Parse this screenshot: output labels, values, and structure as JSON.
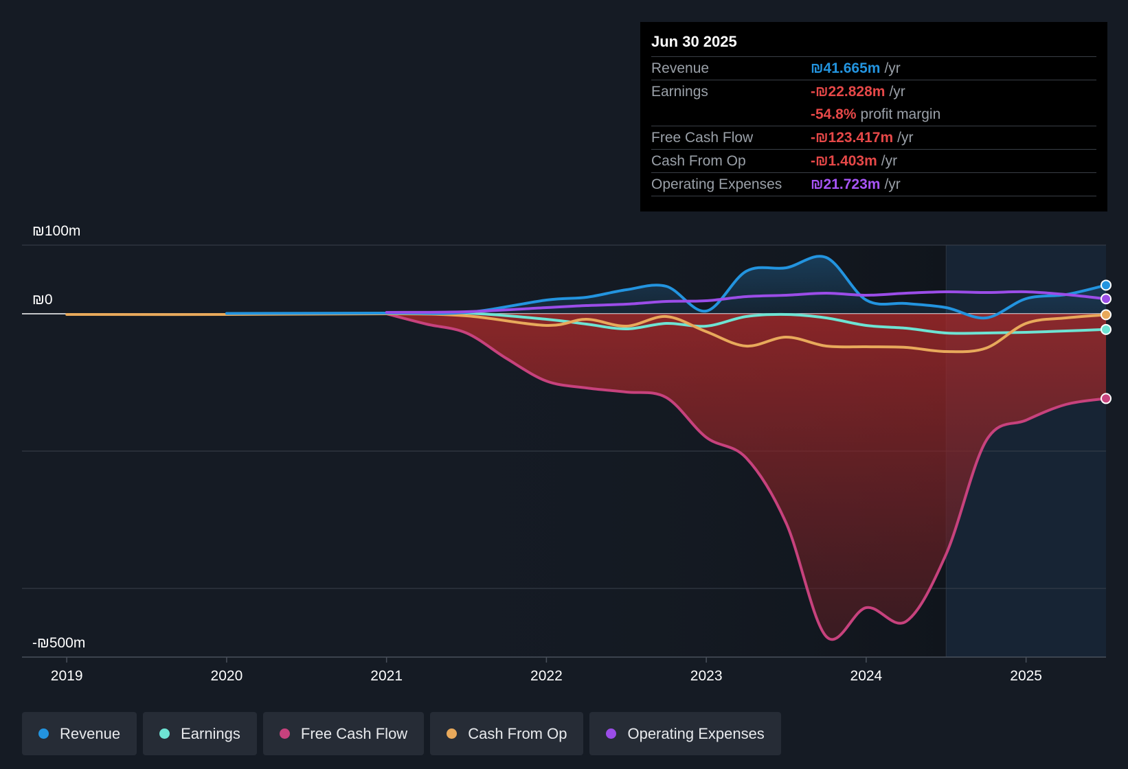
{
  "tooltip": {
    "date": "Jun 30 2025",
    "rows": [
      {
        "label": "Revenue",
        "value": "₪41.665m",
        "unit": "/yr",
        "color": "#2394df"
      },
      {
        "label": "Earnings",
        "value": "-₪22.828m",
        "unit": "/yr",
        "color": "#e64848"
      },
      {
        "label": "",
        "value": "-54.8%",
        "unit": "profit margin",
        "color": "#e64848"
      },
      {
        "label": "Free Cash Flow",
        "value": "-₪123.417m",
        "unit": "/yr",
        "color": "#e64848"
      },
      {
        "label": "Cash From Op",
        "value": "-₪1.403m",
        "unit": "/yr",
        "color": "#e64848"
      },
      {
        "label": "Operating Expenses",
        "value": "₪21.723m",
        "unit": "/yr",
        "color": "#a855f7"
      }
    ]
  },
  "legend": [
    {
      "label": "Revenue",
      "color": "#2394df"
    },
    {
      "label": "Earnings",
      "color": "#6ee3d3"
    },
    {
      "label": "Free Cash Flow",
      "color": "#c7427d"
    },
    {
      "label": "Cash From Op",
      "color": "#e8a95b"
    },
    {
      "label": "Operating Expenses",
      "color": "#9b4de8"
    }
  ],
  "chart_data": {
    "type": "line",
    "title": "",
    "xlabel": "",
    "ylabel": "",
    "x_ticks": [
      "2019",
      "2020",
      "2021",
      "2022",
      "2023",
      "2024",
      "2025"
    ],
    "y_labels": [
      {
        "value": 100,
        "label": "₪100m"
      },
      {
        "value": 0,
        "label": "₪0"
      },
      {
        "value": -500,
        "label": "-₪500m"
      }
    ],
    "xlim": [
      2018.72,
      2025.5
    ],
    "ylim": [
      -500,
      100
    ],
    "gridlines": [
      100,
      -200,
      -400
    ],
    "forecast_start": 2024.5,
    "series": [
      {
        "name": "Revenue",
        "color": "#2394df",
        "points": [
          [
            2020.0,
            0.5
          ],
          [
            2021.0,
            1
          ],
          [
            2021.5,
            2
          ],
          [
            2022.0,
            20
          ],
          [
            2022.25,
            24
          ],
          [
            2022.5,
            35
          ],
          [
            2022.75,
            40
          ],
          [
            2023.0,
            4
          ],
          [
            2023.25,
            62
          ],
          [
            2023.5,
            67
          ],
          [
            2023.75,
            82
          ],
          [
            2024.0,
            20
          ],
          [
            2024.25,
            15
          ],
          [
            2024.5,
            9
          ],
          [
            2024.75,
            -6
          ],
          [
            2025.0,
            22
          ],
          [
            2025.25,
            28
          ],
          [
            2025.5,
            41.665
          ]
        ]
      },
      {
        "name": "Earnings",
        "color": "#6ee3d3",
        "points": [
          [
            2021.0,
            0
          ],
          [
            2021.5,
            1
          ],
          [
            2022.0,
            -8
          ],
          [
            2022.25,
            -15
          ],
          [
            2022.5,
            -22
          ],
          [
            2022.75,
            -14
          ],
          [
            2023.0,
            -18
          ],
          [
            2023.25,
            -4
          ],
          [
            2023.5,
            -1
          ],
          [
            2023.75,
            -6
          ],
          [
            2024.0,
            -17
          ],
          [
            2024.25,
            -21
          ],
          [
            2024.5,
            -28
          ],
          [
            2024.75,
            -28
          ],
          [
            2025.0,
            -27
          ],
          [
            2025.25,
            -25
          ],
          [
            2025.5,
            -22.828
          ]
        ]
      },
      {
        "name": "Free Cash Flow",
        "color": "#c7427d",
        "points": [
          [
            2021.0,
            0
          ],
          [
            2021.25,
            -15
          ],
          [
            2021.5,
            -28
          ],
          [
            2021.75,
            -65
          ],
          [
            2022.0,
            -98
          ],
          [
            2022.25,
            -108
          ],
          [
            2022.5,
            -114
          ],
          [
            2022.75,
            -122
          ],
          [
            2023.0,
            -180
          ],
          [
            2023.25,
            -210
          ],
          [
            2023.5,
            -305
          ],
          [
            2023.75,
            -470
          ],
          [
            2024.0,
            -428
          ],
          [
            2024.25,
            -448
          ],
          [
            2024.5,
            -350
          ],
          [
            2024.75,
            -185
          ],
          [
            2025.0,
            -155
          ],
          [
            2025.25,
            -132
          ],
          [
            2025.5,
            -123.417
          ]
        ]
      },
      {
        "name": "Cash From Op",
        "color": "#e8a95b",
        "points": [
          [
            2019.0,
            -1
          ],
          [
            2020.0,
            -1
          ],
          [
            2021.0,
            0
          ],
          [
            2021.5,
            -3
          ],
          [
            2022.0,
            -17
          ],
          [
            2022.25,
            -8
          ],
          [
            2022.5,
            -18
          ],
          [
            2022.75,
            -4
          ],
          [
            2023.0,
            -26
          ],
          [
            2023.25,
            -47
          ],
          [
            2023.5,
            -34
          ],
          [
            2023.75,
            -47
          ],
          [
            2024.0,
            -48
          ],
          [
            2024.25,
            -49
          ],
          [
            2024.5,
            -55
          ],
          [
            2024.75,
            -50
          ],
          [
            2025.0,
            -14
          ],
          [
            2025.25,
            -6
          ],
          [
            2025.5,
            -1.403
          ]
        ]
      },
      {
        "name": "Operating Expenses",
        "color": "#9b4de8",
        "points": [
          [
            2021.0,
            2
          ],
          [
            2021.5,
            3
          ],
          [
            2022.0,
            9
          ],
          [
            2022.25,
            12
          ],
          [
            2022.5,
            14
          ],
          [
            2022.75,
            18
          ],
          [
            2023.0,
            19
          ],
          [
            2023.25,
            25
          ],
          [
            2023.5,
            27
          ],
          [
            2023.75,
            30
          ],
          [
            2024.0,
            27
          ],
          [
            2024.25,
            30
          ],
          [
            2024.5,
            32
          ],
          [
            2024.75,
            31
          ],
          [
            2025.0,
            32
          ],
          [
            2025.25,
            28
          ],
          [
            2025.5,
            21.723
          ]
        ]
      }
    ]
  }
}
